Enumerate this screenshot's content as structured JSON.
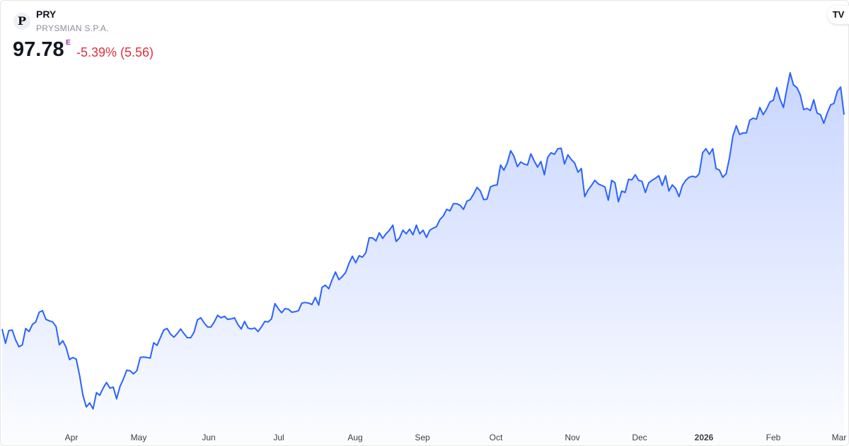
{
  "header": {
    "logo_letter": "P",
    "ticker": "PRY",
    "company": "PRYSMIAN S.P.A.",
    "price": "97.78",
    "price_flag": "E",
    "change": "-5.39% (5.56)",
    "change_color": "#e0303e"
  },
  "branding": {
    "logo_text": "TV"
  },
  "chart_data": {
    "type": "area",
    "title": "",
    "line_color": "#2962ff",
    "fill_color": "#c5d3ff",
    "grid": false,
    "ylim": [
      36.9,
      120.3
    ],
    "x_tick_labels": [
      "Apr",
      "May",
      "Jun",
      "Jul",
      "Aug",
      "Sep",
      "Oct",
      "Nov",
      "Dec",
      "2026",
      "Feb",
      "Mar"
    ],
    "values": [
      55.7,
      52.9,
      55.4,
      55.5,
      53.6,
      52.2,
      52.6,
      55.8,
      55.2,
      56.6,
      57.1,
      59.0,
      59.3,
      57.6,
      57.3,
      57.1,
      56.2,
      52.6,
      53.4,
      52.1,
      49.7,
      50.1,
      49.8,
      46.6,
      42.7,
      40.4,
      41.2,
      40.0,
      43.2,
      42.7,
      44.1,
      45.2,
      44.1,
      44.3,
      42.0,
      44.4,
      45.9,
      47.6,
      47.5,
      46.9,
      47.5,
      50.1,
      50.2,
      50.1,
      50.0,
      53.0,
      52.5,
      54.0,
      55.5,
      55.8,
      54.7,
      54.1,
      54.8,
      55.7,
      54.8,
      54.0,
      54.0,
      55.1,
      57.5,
      57.9,
      56.9,
      56.1,
      56.1,
      57.1,
      58.4,
      57.9,
      58.2,
      57.6,
      57.7,
      57.9,
      56.6,
      55.7,
      57.2,
      55.9,
      55.7,
      55.9,
      55.2,
      56.1,
      57.2,
      57.1,
      57.7,
      60.7,
      59.7,
      58.9,
      59.7,
      59.6,
      59.0,
      59.1,
      59.3,
      60.8,
      60.9,
      60.8,
      60.5,
      61.9,
      60.4,
      63.9,
      64.3,
      63.6,
      65.4,
      66.9,
      65.4,
      66.0,
      66.8,
      68.6,
      70.0,
      68.7,
      70.1,
      69.8,
      70.7,
      73.6,
      73.6,
      73.0,
      74.6,
      73.5,
      74.4,
      75.1,
      76.1,
      72.9,
      73.6,
      75.1,
      74.4,
      75.3,
      74.2,
      76.1,
      74.4,
      75.1,
      73.7,
      75.1,
      75.5,
      75.8,
      77.2,
      77.9,
      79.2,
      78.9,
      80.3,
      80.3,
      80.0,
      79.2,
      80.8,
      81.1,
      82.2,
      83.5,
      82.8,
      81.1,
      81.2,
      83.6,
      83.9,
      84.0,
      87.9,
      86.9,
      88.3,
      90.7,
      89.6,
      87.6,
      88.5,
      88.1,
      87.9,
      90.1,
      88.7,
      87.5,
      88.6,
      86.0,
      89.4,
      90.3,
      90.0,
      91.1,
      91.2,
      88.1,
      89.9,
      89.0,
      88.3,
      86.5,
      87.2,
      81.7,
      83.0,
      83.9,
      84.9,
      84.2,
      83.9,
      83.6,
      81.0,
      84.9,
      84.4,
      80.7,
      82.8,
      82.5,
      85.1,
      85.0,
      86.0,
      84.9,
      84.7,
      82.5,
      84.4,
      84.9,
      85.3,
      85.8,
      83.9,
      85.8,
      82.8,
      84.0,
      83.3,
      81.7,
      83.9,
      84.9,
      85.5,
      85.7,
      85.5,
      86.2,
      90.3,
      91.1,
      90.0,
      91.1,
      87.2,
      86.9,
      85.5,
      86.2,
      89.4,
      93.6,
      95.6,
      93.9,
      94.2,
      94.2,
      96.7,
      97.1,
      96.9,
      99.2,
      97.8,
      98.9,
      100.3,
      100.6,
      103.1,
      100.8,
      99.2,
      102.8,
      106.0,
      103.6,
      103.1,
      101.7,
      98.8,
      99.0,
      98.6,
      100.7,
      98.1,
      97.8,
      96.1,
      98.1,
      99.7,
      100.0,
      102.4,
      103.2,
      97.78
    ]
  }
}
